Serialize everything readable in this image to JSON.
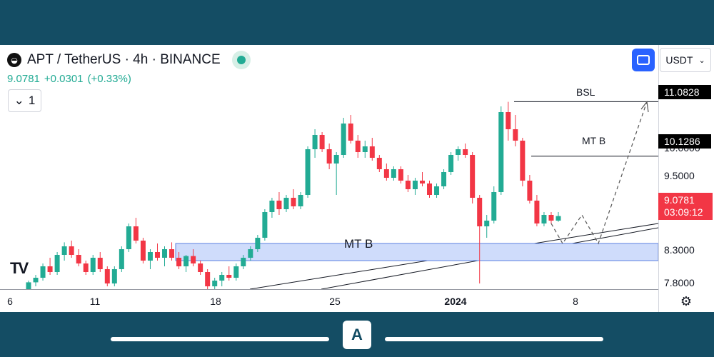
{
  "header": {
    "symbol_title": "APT / TetherUS · 4h · BINANCE",
    "last_price": "9.0781",
    "change": "+0.0301",
    "change_pct": "(+0.33%)",
    "interval_value": "1",
    "currency": "USDT"
  },
  "colors": {
    "up": "#22ab94",
    "down": "#f23645",
    "zone_fill": "#cfdcfb",
    "zone_border": "#5b7fe0",
    "accent": "#2962ff"
  },
  "annotations": {
    "zone_label": "MT B",
    "bsl_label": "BSL",
    "mtb_label": "MT B"
  },
  "price_tags": {
    "bsl": "11.0828",
    "mtb": "10.1286",
    "last": "9.0781",
    "countdown": "03:09:12"
  },
  "chart_data": {
    "type": "candlestick",
    "title": "APT / TetherUS · 4h · BINANCE",
    "y_ticks": [
      "10.0000",
      "9.5000",
      "8.3000",
      "7.8000"
    ],
    "x_ticks": [
      "6",
      "11",
      "18",
      "25",
      "2024",
      "8"
    ],
    "ylim": [
      7.8,
      11.2
    ],
    "key_levels": {
      "BSL": 11.0828,
      "MT B": 10.1286,
      "last": 9.0781
    },
    "zone": {
      "label": "MT B",
      "low": 8.3,
      "high": 8.6
    },
    "candles": [
      {
        "o": 7.7,
        "h": 7.95,
        "l": 7.65,
        "c": 7.92
      },
      {
        "o": 7.92,
        "h": 8.05,
        "l": 7.85,
        "c": 8.0
      },
      {
        "o": 8.0,
        "h": 8.25,
        "l": 7.95,
        "c": 8.2
      },
      {
        "o": 8.2,
        "h": 8.35,
        "l": 8.05,
        "c": 8.1
      },
      {
        "o": 8.1,
        "h": 8.45,
        "l": 8.05,
        "c": 8.4
      },
      {
        "o": 8.4,
        "h": 8.62,
        "l": 8.3,
        "c": 8.55
      },
      {
        "o": 8.55,
        "h": 8.65,
        "l": 8.35,
        "c": 8.4
      },
      {
        "o": 8.4,
        "h": 8.5,
        "l": 8.2,
        "c": 8.25
      },
      {
        "o": 8.25,
        "h": 8.3,
        "l": 8.05,
        "c": 8.1
      },
      {
        "o": 8.1,
        "h": 8.4,
        "l": 8.05,
        "c": 8.35
      },
      {
        "o": 8.35,
        "h": 8.45,
        "l": 8.1,
        "c": 8.15
      },
      {
        "o": 8.15,
        "h": 8.2,
        "l": 7.85,
        "c": 7.9
      },
      {
        "o": 7.9,
        "h": 8.2,
        "l": 7.85,
        "c": 8.15
      },
      {
        "o": 8.15,
        "h": 8.55,
        "l": 8.1,
        "c": 8.5
      },
      {
        "o": 8.5,
        "h": 8.95,
        "l": 8.45,
        "c": 8.9
      },
      {
        "o": 8.9,
        "h": 9.05,
        "l": 8.6,
        "c": 8.65
      },
      {
        "o": 8.65,
        "h": 8.7,
        "l": 8.25,
        "c": 8.3
      },
      {
        "o": 8.3,
        "h": 8.5,
        "l": 8.15,
        "c": 8.45
      },
      {
        "o": 8.45,
        "h": 8.6,
        "l": 8.3,
        "c": 8.35
      },
      {
        "o": 8.35,
        "h": 8.55,
        "l": 8.2,
        "c": 8.5
      },
      {
        "o": 8.5,
        "h": 8.62,
        "l": 8.3,
        "c": 8.35
      },
      {
        "o": 8.35,
        "h": 8.45,
        "l": 8.15,
        "c": 8.2
      },
      {
        "o": 8.2,
        "h": 8.4,
        "l": 8.1,
        "c": 8.38
      },
      {
        "o": 8.38,
        "h": 8.5,
        "l": 8.2,
        "c": 8.25
      },
      {
        "o": 8.25,
        "h": 8.3,
        "l": 8.05,
        "c": 8.1
      },
      {
        "o": 8.1,
        "h": 8.15,
        "l": 7.8,
        "c": 7.85
      },
      {
        "o": 7.85,
        "h": 8.0,
        "l": 7.75,
        "c": 7.95
      },
      {
        "o": 7.95,
        "h": 8.1,
        "l": 7.85,
        "c": 8.05
      },
      {
        "o": 8.05,
        "h": 8.2,
        "l": 7.95,
        "c": 8.0
      },
      {
        "o": 8.0,
        "h": 8.25,
        "l": 7.95,
        "c": 8.2
      },
      {
        "o": 8.2,
        "h": 8.4,
        "l": 8.15,
        "c": 8.35
      },
      {
        "o": 8.35,
        "h": 8.55,
        "l": 8.3,
        "c": 8.5
      },
      {
        "o": 8.5,
        "h": 8.75,
        "l": 8.45,
        "c": 8.7
      },
      {
        "o": 8.7,
        "h": 9.2,
        "l": 8.65,
        "c": 9.15
      },
      {
        "o": 9.15,
        "h": 9.4,
        "l": 9.05,
        "c": 9.35
      },
      {
        "o": 9.35,
        "h": 9.5,
        "l": 9.1,
        "c": 9.2
      },
      {
        "o": 9.2,
        "h": 9.45,
        "l": 9.15,
        "c": 9.4
      },
      {
        "o": 9.4,
        "h": 9.55,
        "l": 9.2,
        "c": 9.25
      },
      {
        "o": 9.25,
        "h": 9.5,
        "l": 9.2,
        "c": 9.45
      },
      {
        "o": 9.45,
        "h": 10.3,
        "l": 9.4,
        "c": 10.25
      },
      {
        "o": 10.25,
        "h": 10.6,
        "l": 10.1,
        "c": 10.5
      },
      {
        "o": 10.5,
        "h": 10.55,
        "l": 10.2,
        "c": 10.25
      },
      {
        "o": 10.25,
        "h": 10.35,
        "l": 9.9,
        "c": 10.0
      },
      {
        "o": 10.0,
        "h": 10.2,
        "l": 9.45,
        "c": 10.15
      },
      {
        "o": 10.15,
        "h": 10.8,
        "l": 10.1,
        "c": 10.7
      },
      {
        "o": 10.7,
        "h": 10.85,
        "l": 10.35,
        "c": 10.4
      },
      {
        "o": 10.4,
        "h": 10.5,
        "l": 10.1,
        "c": 10.2
      },
      {
        "o": 10.2,
        "h": 10.4,
        "l": 10.1,
        "c": 10.3
      },
      {
        "o": 10.3,
        "h": 10.45,
        "l": 10.05,
        "c": 10.1
      },
      {
        "o": 10.1,
        "h": 10.15,
        "l": 9.85,
        "c": 9.9
      },
      {
        "o": 9.9,
        "h": 10.0,
        "l": 9.7,
        "c": 9.75
      },
      {
        "o": 9.75,
        "h": 9.95,
        "l": 9.7,
        "c": 9.9
      },
      {
        "o": 9.9,
        "h": 9.95,
        "l": 9.65,
        "c": 9.7
      },
      {
        "o": 9.7,
        "h": 9.8,
        "l": 9.5,
        "c": 9.55
      },
      {
        "o": 9.55,
        "h": 9.75,
        "l": 9.45,
        "c": 9.7
      },
      {
        "o": 9.7,
        "h": 9.85,
        "l": 9.6,
        "c": 9.65
      },
      {
        "o": 9.65,
        "h": 9.7,
        "l": 9.4,
        "c": 9.45
      },
      {
        "o": 9.45,
        "h": 9.65,
        "l": 9.4,
        "c": 9.6
      },
      {
        "o": 9.6,
        "h": 9.9,
        "l": 9.55,
        "c": 9.85
      },
      {
        "o": 9.85,
        "h": 10.2,
        "l": 9.8,
        "c": 10.15
      },
      {
        "o": 10.15,
        "h": 10.3,
        "l": 10.05,
        "c": 10.25
      },
      {
        "o": 10.25,
        "h": 10.35,
        "l": 10.1,
        "c": 10.15
      },
      {
        "o": 10.15,
        "h": 10.2,
        "l": 9.3,
        "c": 9.4
      },
      {
        "o": 9.4,
        "h": 9.45,
        "l": 7.9,
        "c": 8.9
      },
      {
        "o": 8.9,
        "h": 9.1,
        "l": 8.7,
        "c": 9.0
      },
      {
        "o": 9.0,
        "h": 9.6,
        "l": 8.95,
        "c": 9.5
      },
      {
        "o": 9.5,
        "h": 11.0,
        "l": 9.45,
        "c": 10.9
      },
      {
        "o": 10.9,
        "h": 11.08,
        "l": 10.4,
        "c": 10.6
      },
      {
        "o": 10.6,
        "h": 10.85,
        "l": 10.3,
        "c": 10.4
      },
      {
        "o": 10.4,
        "h": 10.45,
        "l": 9.6,
        "c": 9.7
      },
      {
        "o": 9.7,
        "h": 9.8,
        "l": 9.3,
        "c": 9.35
      },
      {
        "o": 9.35,
        "h": 9.45,
        "l": 8.9,
        "c": 8.95
      },
      {
        "o": 8.95,
        "h": 9.15,
        "l": 8.9,
        "c": 9.1
      },
      {
        "o": 9.1,
        "h": 9.15,
        "l": 8.95,
        "c": 9.0
      },
      {
        "o": 9.0,
        "h": 9.15,
        "l": 8.98,
        "c": 9.08
      }
    ]
  },
  "footer": {
    "brand_letter": "A"
  }
}
